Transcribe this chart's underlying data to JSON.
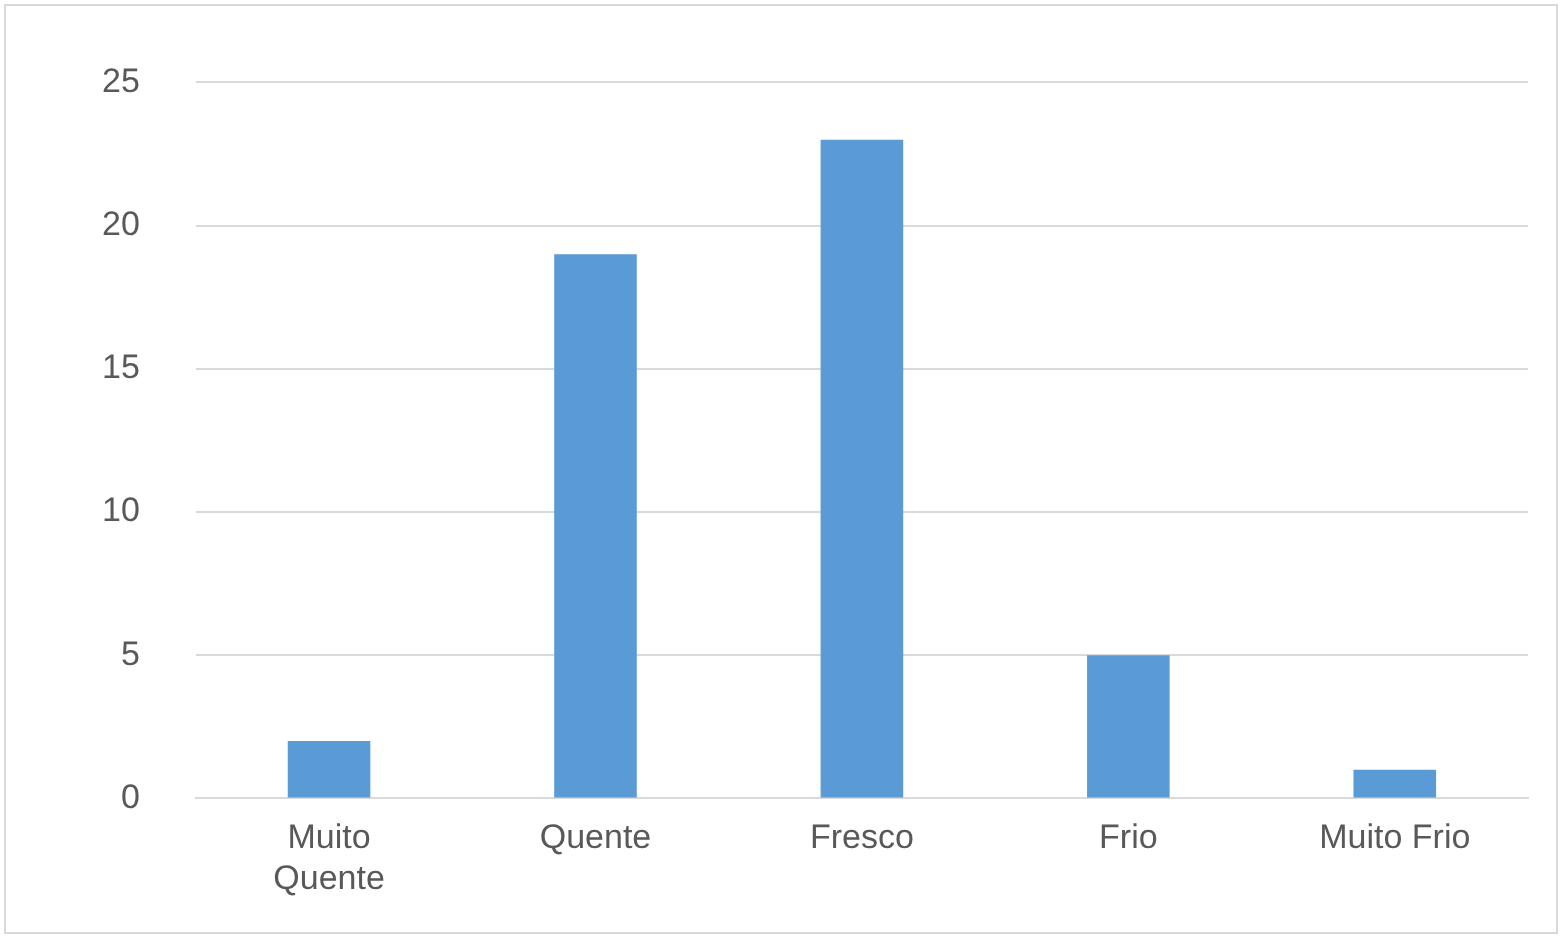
{
  "chart_data": {
    "type": "bar",
    "categories": [
      "Muito Quente",
      "Quente",
      "Fresco",
      "Frio",
      "Muito Frio"
    ],
    "values": [
      2,
      19,
      23,
      5,
      1
    ],
    "color": "#5b9bd5",
    "ylim": [
      0,
      25
    ],
    "yticks": [
      0,
      5,
      10,
      15,
      20,
      25
    ],
    "grid": "y"
  }
}
